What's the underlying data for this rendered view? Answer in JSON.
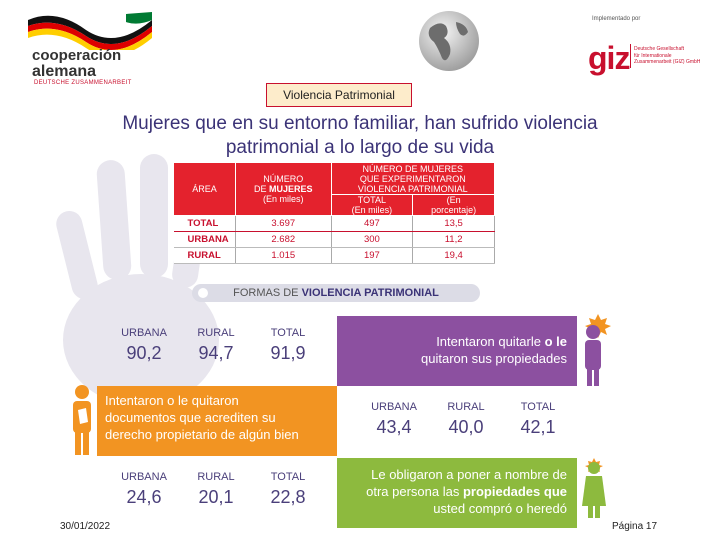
{
  "header": {
    "coop_line1": "cooperación",
    "coop_line2": "alemana",
    "coop_line3": "DEUTSCHE ZUSAMMENARBEIT",
    "implemented_by": "Implementado por",
    "giz_logo": "giz",
    "giz_name_lines": [
      "Deutsche Gesellschaft",
      "für Internationale",
      "Zusammenarbeit (GIZ) GmbH"
    ]
  },
  "section_tab": "Violencia Patrimonial",
  "title_line1": "Mujeres que en su entorno familiar, han sufrido violencia",
  "title_line2": "patrimonial a lo largo de su vida",
  "table": {
    "h_area": "ÁREA",
    "h_numero": "NÚMERO",
    "h_de": "DE",
    "h_mujeres": "MUJERES",
    "h_miles": "(En miles)",
    "h_group1": "NÚMERO DE MUJERES",
    "h_group2": "QUE EXPERIMENTARON",
    "h_group3": "VIOLENCIA PATRIMONIAL",
    "h_total": "TOTAL",
    "h_total_unit": "(En miles)",
    "h_pct1": "(En",
    "h_pct2": "porcentaje)",
    "rows": [
      {
        "area": "TOTAL",
        "mujeres": "3.697",
        "total": "497",
        "pct": "13,5"
      },
      {
        "area": "URBANA",
        "mujeres": "2.682",
        "total": "300",
        "pct": "11,2"
      },
      {
        "area": "RURAL",
        "mujeres": "1.015",
        "total": "197",
        "pct": "19,4"
      }
    ]
  },
  "forms_bar": {
    "prefix": "FORMAS DE ",
    "bold": "VIOLENCIA PATRIMONIAL"
  },
  "block1": {
    "stats": [
      {
        "label": "URBANA",
        "value": "90,2"
      },
      {
        "label": "RURAL",
        "value": "94,7"
      },
      {
        "label": "TOTAL",
        "value": "91,9"
      }
    ],
    "line1_a": "Intentaron quitarle ",
    "line1_b": "o le",
    "line2": "quitaron sus propiedades"
  },
  "block2": {
    "line1": "Intentaron o le quitaron",
    "line2": "documentos que acrediten su",
    "line3": "derecho propietario de algún bien",
    "stats": [
      {
        "label": "URBANA",
        "value": "43,4"
      },
      {
        "label": "RURAL",
        "value": "40,0"
      },
      {
        "label": "TOTAL",
        "value": "42,1"
      }
    ]
  },
  "block3": {
    "stats": [
      {
        "label": "URBANA",
        "value": "24,6"
      },
      {
        "label": "RURAL",
        "value": "20,1"
      },
      {
        "label": "TOTAL",
        "value": "22,8"
      }
    ],
    "line1": "Le obligaron a poner a nombre de",
    "line2_a": "otra persona las ",
    "line2_b": "propiedades que",
    "line3": "usted compró o heredó"
  },
  "footer": {
    "date": "30/01/2022",
    "page": "Página 17"
  },
  "colors": {
    "accent_red": "#c8102e",
    "purple": "#8c50a0",
    "orange": "#f29422",
    "green": "#8dba3e"
  }
}
